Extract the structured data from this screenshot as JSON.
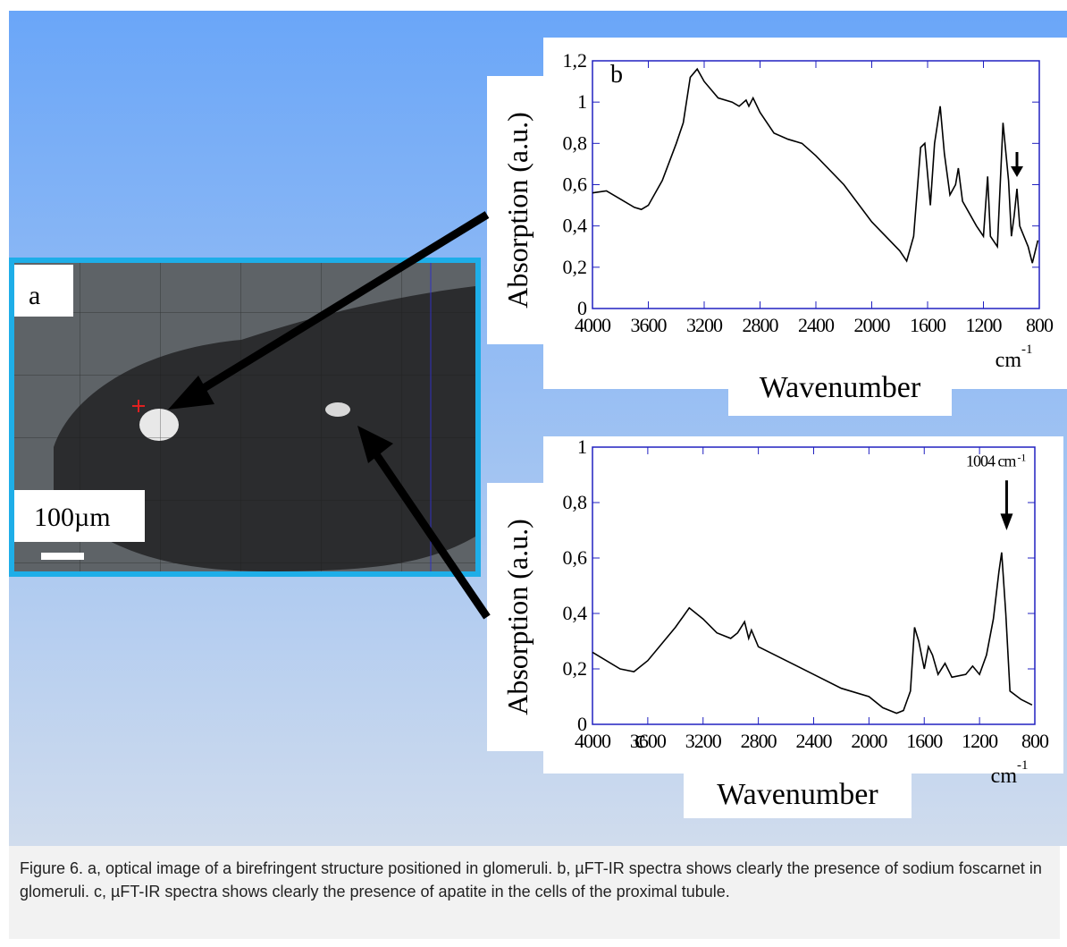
{
  "panel_a": {
    "label": "a",
    "scale_bar": "100µm"
  },
  "chart_data": [
    {
      "type": "line",
      "panel": "b",
      "y_label": "Absorption (a.u.)",
      "x_label": "Wavenumber",
      "x_unit": "cm",
      "x_unit_exponent": "-1",
      "color": "#000000",
      "xlim": [
        4000,
        800
      ],
      "xticks": [
        4000,
        3600,
        3200,
        2800,
        2400,
        2000,
        1600,
        1200,
        800
      ],
      "ylim": [
        0,
        1.2
      ],
      "yticks": [
        0,
        {
          "value": 0.2,
          "label": "0,2"
        },
        {
          "value": 0.4,
          "label": "0,4"
        },
        {
          "value": 0.6,
          "label": "0,6"
        },
        {
          "value": 0.8,
          "label": "0,8"
        },
        1,
        {
          "value": 1.2,
          "label": "1,2"
        }
      ],
      "x": [
        4000,
        3900,
        3800,
        3700,
        3650,
        3600,
        3500,
        3400,
        3350,
        3300,
        3250,
        3200,
        3100,
        3000,
        2950,
        2900,
        2880,
        2850,
        2800,
        2700,
        2600,
        2500,
        2400,
        2200,
        2000,
        1900,
        1800,
        1750,
        1700,
        1650,
        1620,
        1580,
        1550,
        1510,
        1480,
        1440,
        1400,
        1380,
        1350,
        1250,
        1200,
        1170,
        1150,
        1100,
        1060,
        1020,
        1000,
        980,
        960,
        940,
        880,
        850,
        810
      ],
      "values": [
        0.56,
        0.57,
        0.53,
        0.49,
        0.48,
        0.5,
        0.62,
        0.8,
        0.9,
        1.12,
        1.16,
        1.1,
        1.02,
        1.0,
        0.98,
        1.01,
        0.98,
        1.02,
        0.95,
        0.85,
        0.82,
        0.8,
        0.74,
        0.6,
        0.42,
        0.35,
        0.28,
        0.23,
        0.35,
        0.78,
        0.8,
        0.5,
        0.8,
        0.98,
        0.75,
        0.55,
        0.6,
        0.68,
        0.52,
        0.4,
        0.35,
        0.64,
        0.35,
        0.3,
        0.9,
        0.62,
        0.35,
        0.45,
        0.58,
        0.4,
        0.3,
        0.22,
        0.33
      ]
    },
    {
      "type": "line",
      "panel": "c",
      "y_label": "Absorption (a.u.)",
      "x_label": "Wavenumber",
      "x_unit": "cm",
      "x_unit_exponent": "-1",
      "color": "#000000",
      "annotation": {
        "text": "1004 cm",
        "exponent": "-1",
        "x": 1004
      },
      "xlim": [
        4000,
        800
      ],
      "xticks": [
        4000,
        3600,
        3200,
        2800,
        2400,
        2000,
        1600,
        1200,
        800
      ],
      "ylim": [
        0,
        1
      ],
      "yticks": [
        0,
        {
          "value": 0.2,
          "label": "0,2"
        },
        {
          "value": 0.4,
          "label": "0,4"
        },
        {
          "value": 0.6,
          "label": "0,6"
        },
        {
          "value": 0.8,
          "label": "0,8"
        },
        1
      ],
      "x": [
        4000,
        3800,
        3700,
        3600,
        3400,
        3300,
        3200,
        3100,
        3000,
        2950,
        2900,
        2870,
        2850,
        2800,
        2600,
        2400,
        2200,
        2000,
        1900,
        1800,
        1750,
        1700,
        1670,
        1640,
        1600,
        1570,
        1540,
        1500,
        1450,
        1400,
        1300,
        1250,
        1200,
        1150,
        1100,
        1060,
        1040,
        1010,
        980,
        900,
        820
      ],
      "values": [
        0.26,
        0.2,
        0.19,
        0.23,
        0.35,
        0.42,
        0.38,
        0.33,
        0.31,
        0.33,
        0.37,
        0.31,
        0.34,
        0.28,
        0.23,
        0.18,
        0.13,
        0.1,
        0.06,
        0.04,
        0.05,
        0.12,
        0.35,
        0.3,
        0.2,
        0.28,
        0.25,
        0.18,
        0.22,
        0.17,
        0.18,
        0.21,
        0.18,
        0.25,
        0.38,
        0.55,
        0.62,
        0.4,
        0.12,
        0.09,
        0.07
      ]
    }
  ],
  "caption": "Figure 6. a, optical image of a birefringent structure positioned in glomeruli. b, µFT-IR spectra shows clearly the presence of sodium foscarnet in glomeruli. c, µFT-IR spectra shows clearly the presence of apatite in the cells of the proximal tubule."
}
